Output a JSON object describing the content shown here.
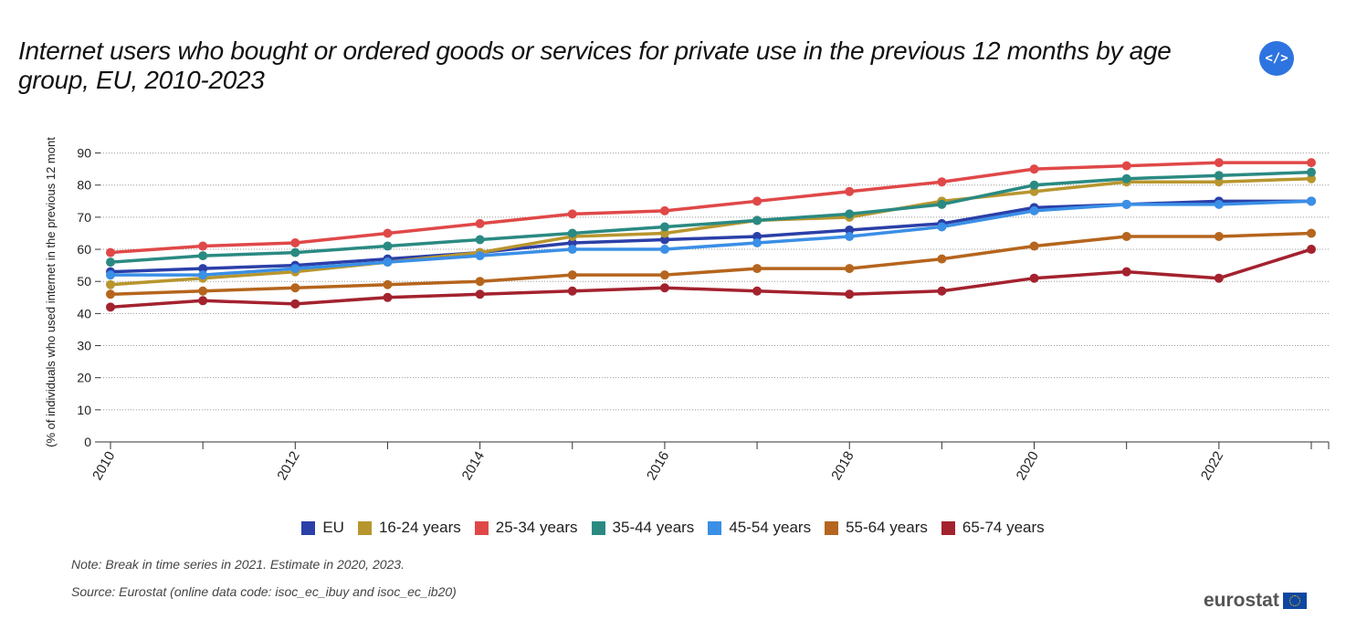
{
  "title": "Internet users who bought or ordered goods or services for private use in the previous 12 months by age group, EU, 2010-2023",
  "embed_button_label": "</>",
  "note": "Note: Break in time series in 2021. Estimate in 2020, 2023.",
  "source": "Source: Eurostat (online data code: isoc_ec_ibuy and isoc_ec_ib20)",
  "logo_text": "eurostat",
  "chart_data": {
    "type": "line",
    "title": "Internet users who bought or ordered goods or services for private use in the previous 12 months by age group, EU, 2010-2023",
    "ylabel": "(% of individuals who used internet in the previous 12 mont",
    "xlabel": "",
    "x": [
      2010,
      2011,
      2012,
      2013,
      2014,
      2015,
      2016,
      2017,
      2018,
      2019,
      2020,
      2021,
      2022,
      2023
    ],
    "x_tick_labels": [
      "2010",
      "2012",
      "2014",
      "2016",
      "2018",
      "2020",
      "2022"
    ],
    "ylim": [
      0,
      95
    ],
    "y_ticks": [
      0,
      10,
      20,
      30,
      40,
      50,
      60,
      70,
      80,
      90
    ],
    "grid": "horizontal dotted",
    "legend_position": "bottom",
    "series": [
      {
        "name": "EU",
        "color": "#2b3fa8",
        "values": [
          53,
          54,
          55,
          57,
          59,
          62,
          63,
          64,
          66,
          68,
          73,
          74,
          75,
          75
        ]
      },
      {
        "name": "16-24 years",
        "color": "#b8962e",
        "values": [
          49,
          51,
          53,
          56,
          59,
          64,
          65,
          69,
          70,
          75,
          78,
          81,
          81,
          82
        ]
      },
      {
        "name": "25-34 years",
        "color": "#e04848",
        "values": [
          59,
          61,
          62,
          65,
          68,
          71,
          72,
          75,
          78,
          81,
          85,
          86,
          87,
          87
        ]
      },
      {
        "name": "35-44 years",
        "color": "#2a8a82",
        "values": [
          56,
          58,
          59,
          61,
          63,
          65,
          67,
          69,
          71,
          74,
          80,
          82,
          83,
          84
        ]
      },
      {
        "name": "45-54 years",
        "color": "#3a8fe6",
        "values": [
          52,
          52,
          54,
          56,
          58,
          60,
          60,
          62,
          64,
          67,
          72,
          74,
          74,
          75
        ]
      },
      {
        "name": "55-64 years",
        "color": "#b5651d",
        "values": [
          46,
          47,
          48,
          49,
          50,
          52,
          52,
          54,
          54,
          57,
          61,
          64,
          64,
          65
        ]
      },
      {
        "name": "65-74 years",
        "color": "#a3222e",
        "values": [
          42,
          44,
          43,
          45,
          46,
          47,
          48,
          47,
          46,
          47,
          51,
          53,
          51,
          60
        ]
      }
    ]
  }
}
